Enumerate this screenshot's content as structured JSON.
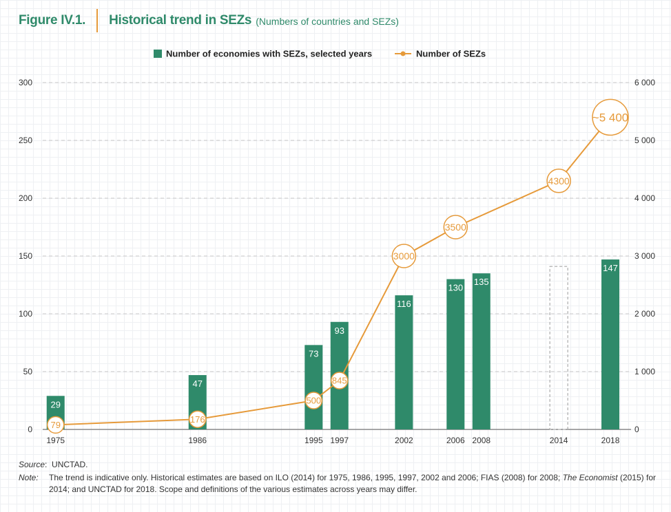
{
  "figure": {
    "number": "Figure IV.1.",
    "title": "Historical trend in SEZs",
    "subtitle": "(Numbers of countries and SEZs)"
  },
  "footer": {
    "source_label": "Source",
    "source_text": "UNCTAD.",
    "note_label": "Note",
    "note_text_1": "The trend is indicative only. Historical estimates are based on ILO (2014) for 1975, 1986, 1995, 1997, 2002 and 2006; FIAS (2008) for 2008; ",
    "note_italic": "The Economist",
    "note_text_2": " (2015) for 2014; and UNCTAD for 2018. Scope and definitions of the various estimates across years may differ."
  },
  "colors": {
    "bar": "#2f8a6a",
    "line": "#e69a3a",
    "text_green": "#2f8a6a"
  },
  "chart_data": {
    "type": "bar+line",
    "xlim": [
      1974,
      2019.6
    ],
    "legend": {
      "position": "top-center",
      "bar_label": "Number of economies with SEZs, selected years",
      "line_label": "Number of SEZs"
    },
    "left_axis": {
      "ylim": [
        0,
        300
      ],
      "ticks": [
        0,
        50,
        100,
        150,
        200,
        250,
        300
      ],
      "tick_labels": [
        "0",
        "50",
        "100",
        "150",
        "200",
        "250",
        "300"
      ]
    },
    "right_axis": {
      "ylim": [
        0,
        6000
      ],
      "ticks": [
        0,
        1000,
        2000,
        3000,
        4000,
        5000,
        6000
      ],
      "tick_labels": [
        "0",
        "1 000",
        "2 000",
        "3 000",
        "4 000",
        "5 000",
        "6 000"
      ]
    },
    "grid": "horizontal-dashed",
    "bars": [
      {
        "year": "1975",
        "value": 29,
        "label": "29"
      },
      {
        "year": "1986",
        "value": 47,
        "label": "47"
      },
      {
        "year": "1995",
        "value": 73,
        "label": "73"
      },
      {
        "year": "1997",
        "value": 93,
        "label": "93"
      },
      {
        "year": "2002",
        "value": 116,
        "label": "116"
      },
      {
        "year": "2006",
        "value": 130,
        "label": "130"
      },
      {
        "year": "2008",
        "value": 135,
        "label": "135"
      },
      {
        "year": "2014",
        "value": 141,
        "label": "",
        "placeholder": true
      },
      {
        "year": "2018",
        "value": 147,
        "label": "147"
      }
    ],
    "line": [
      {
        "year": "1975",
        "value": 79,
        "label": "79"
      },
      {
        "year": "1986",
        "value": 176,
        "label": "176"
      },
      {
        "year": "1995",
        "value": 500,
        "label": "500"
      },
      {
        "year": "1997",
        "value": 845,
        "label": "845"
      },
      {
        "year": "2002",
        "value": 3000,
        "label": "3000"
      },
      {
        "year": "2006",
        "value": 3500,
        "label": "3500"
      },
      {
        "year": "2014",
        "value": 4300,
        "label": "4300"
      },
      {
        "year": "2018",
        "value": 5400,
        "label": "~5 400"
      }
    ],
    "x_tick_labels": [
      "1975",
      "1986",
      "1995",
      "1997",
      "2002",
      "2006",
      "2008",
      "2014",
      "2018"
    ]
  }
}
